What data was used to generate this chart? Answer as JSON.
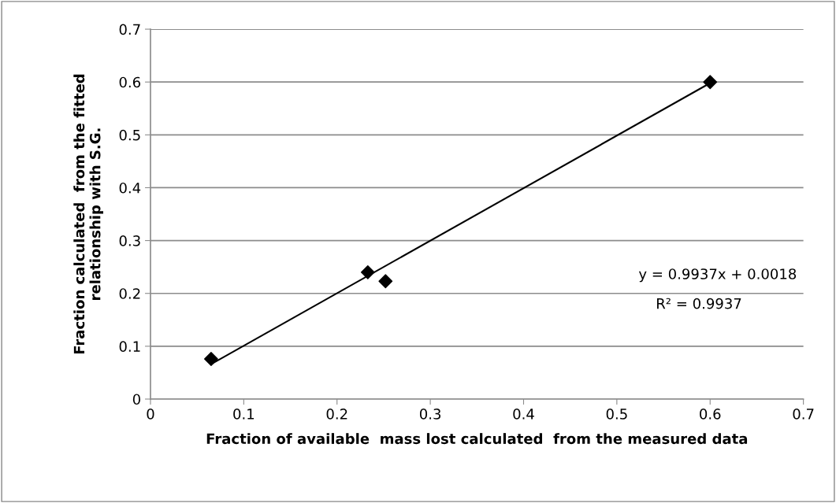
{
  "chart_data": {
    "type": "scatter",
    "xlabel": "Fraction of available  mass lost calculated  from the measured data",
    "ylabel": "Fraction calculated  from the fitted\nrelationship with S.G.",
    "annotations": [
      "y = 0.9937x + 0.0018",
      "R² = 0.9937"
    ],
    "series": [
      {
        "color": "#000000",
        "marker": "diamond",
        "x": [
          0.065,
          0.233,
          0.252,
          0.6
        ],
        "values": [
          0.076,
          0.24,
          0.223,
          0.6
        ]
      },
      {
        "type": "line",
        "color": "#000000",
        "marker": "none",
        "line_style": "solid",
        "x": [
          0.065,
          0.6
        ],
        "values": [
          0.066,
          0.598
        ]
      }
    ],
    "xlim": [
      0,
      0.7
    ],
    "ylim": [
      0,
      0.7
    ],
    "xticks": [
      0,
      0.1,
      0.2,
      0.3,
      0.4,
      0.5,
      0.6,
      0.7
    ],
    "yticks": [
      0,
      0.1,
      0.2,
      0.3,
      0.4,
      0.5,
      0.6,
      0.7
    ],
    "grid": "y"
  }
}
